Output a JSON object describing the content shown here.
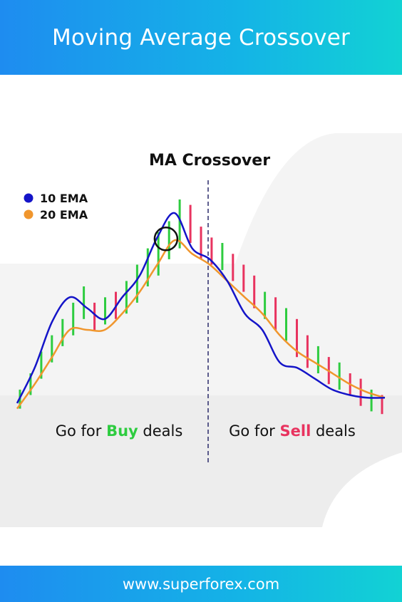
{
  "header": {
    "title": "Moving Average Crossover"
  },
  "footer": {
    "url": "www.superforex.com"
  },
  "labels": {
    "buy_prefix": "Go for ",
    "buy_word": "Buy",
    "buy_suffix": " deals",
    "sell_prefix": "Go for ",
    "sell_word": "Sell",
    "sell_suffix": " deals"
  },
  "colors": {
    "buy": "#2ecc40",
    "sell": "#e8335f",
    "ema10": "#1414c8",
    "ema20": "#f0962d",
    "bull_bar": "#2ecc40",
    "bear_bar": "#e8335f",
    "crossover_divider": "#2a2a6a"
  },
  "chart_data": {
    "type": "line",
    "title": "MA Crossover",
    "grid": false,
    "legend_placement": "top-left",
    "crossover_marker": {
      "x": 17
    },
    "series": [
      {
        "name": "10 EMA",
        "color": "#1414c8",
        "x": [
          0,
          2,
          4,
          6,
          8,
          10,
          12,
          14,
          16,
          18,
          20,
          22,
          24,
          26,
          28,
          30,
          32,
          34,
          36,
          38,
          40,
          42
        ],
        "values": [
          5,
          18,
          35,
          44,
          40,
          36,
          44,
          52,
          66,
          75,
          62,
          58,
          50,
          38,
          32,
          20,
          18,
          14,
          10,
          8,
          7,
          7
        ]
      },
      {
        "name": "20 EMA",
        "color": "#f0962d",
        "x": [
          0,
          2,
          4,
          6,
          8,
          10,
          12,
          14,
          16,
          18,
          20,
          22,
          24,
          26,
          28,
          30,
          32,
          34,
          36,
          38,
          40,
          42
        ],
        "values": [
          3,
          12,
          22,
          32,
          32,
          32,
          38,
          46,
          56,
          65,
          60,
          56,
          50,
          44,
          38,
          30,
          24,
          20,
          16,
          12,
          9,
          7
        ]
      }
    ],
    "bars": [
      {
        "x": 0,
        "low": 3,
        "high": 10,
        "dir": "up"
      },
      {
        "x": 1,
        "low": 8,
        "high": 16,
        "dir": "up"
      },
      {
        "x": 2,
        "low": 14,
        "high": 24,
        "dir": "up"
      },
      {
        "x": 3,
        "low": 20,
        "high": 30,
        "dir": "up"
      },
      {
        "x": 4,
        "low": 26,
        "high": 36,
        "dir": "up"
      },
      {
        "x": 5,
        "low": 30,
        "high": 42,
        "dir": "up"
      },
      {
        "x": 6,
        "low": 36,
        "high": 48,
        "dir": "up"
      },
      {
        "x": 7,
        "low": 32,
        "high": 42,
        "dir": "down"
      },
      {
        "x": 8,
        "low": 34,
        "high": 44,
        "dir": "up"
      },
      {
        "x": 9,
        "low": 36,
        "high": 46,
        "dir": "down"
      },
      {
        "x": 10,
        "low": 38,
        "high": 50,
        "dir": "up"
      },
      {
        "x": 11,
        "low": 42,
        "high": 56,
        "dir": "up"
      },
      {
        "x": 12,
        "low": 48,
        "high": 62,
        "dir": "up"
      },
      {
        "x": 13,
        "low": 52,
        "high": 68,
        "dir": "up"
      },
      {
        "x": 14,
        "low": 58,
        "high": 72,
        "dir": "up"
      },
      {
        "x": 15,
        "low": 62,
        "high": 80,
        "dir": "up"
      },
      {
        "x": 16,
        "low": 64,
        "high": 78,
        "dir": "down"
      },
      {
        "x": 17,
        "low": 58,
        "high": 70,
        "dir": "down"
      },
      {
        "x": 18,
        "low": 56,
        "high": 66,
        "dir": "down"
      },
      {
        "x": 19,
        "low": 54,
        "high": 64,
        "dir": "up"
      },
      {
        "x": 20,
        "low": 50,
        "high": 60,
        "dir": "down"
      },
      {
        "x": 21,
        "low": 46,
        "high": 56,
        "dir": "down"
      },
      {
        "x": 22,
        "low": 40,
        "high": 52,
        "dir": "down"
      },
      {
        "x": 23,
        "low": 36,
        "high": 46,
        "dir": "up"
      },
      {
        "x": 24,
        "low": 32,
        "high": 44,
        "dir": "down"
      },
      {
        "x": 25,
        "low": 28,
        "high": 40,
        "dir": "up"
      },
      {
        "x": 26,
        "low": 22,
        "high": 36,
        "dir": "down"
      },
      {
        "x": 27,
        "low": 18,
        "high": 30,
        "dir": "down"
      },
      {
        "x": 28,
        "low": 16,
        "high": 26,
        "dir": "up"
      },
      {
        "x": 29,
        "low": 12,
        "high": 22,
        "dir": "down"
      },
      {
        "x": 30,
        "low": 10,
        "high": 20,
        "dir": "up"
      },
      {
        "x": 31,
        "low": 8,
        "high": 16,
        "dir": "down"
      },
      {
        "x": 32,
        "low": 4,
        "high": 14,
        "dir": "down"
      },
      {
        "x": 33,
        "low": 2,
        "high": 10,
        "dir": "up"
      },
      {
        "x": 34,
        "low": 1,
        "high": 8,
        "dir": "down"
      }
    ]
  }
}
